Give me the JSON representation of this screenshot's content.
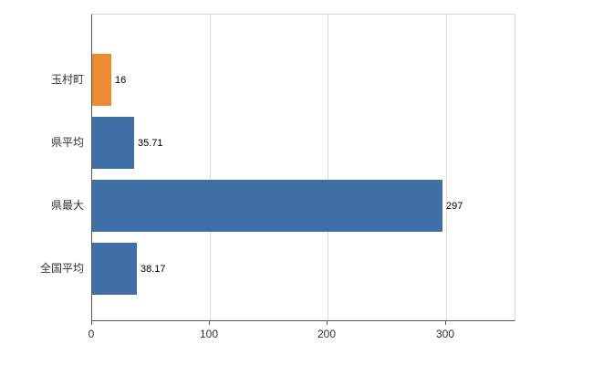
{
  "chart_data": {
    "type": "bar",
    "orientation": "horizontal",
    "title": "",
    "xlabel": "",
    "ylabel": "",
    "categories": [
      "玉村町",
      "県平均",
      "県最大",
      "全国平均"
    ],
    "values": [
      16,
      35.71,
      297,
      38.17
    ],
    "data_labels": [
      "16",
      "35.71",
      "297",
      "38.17"
    ],
    "bar_colors": [
      "#ee8b32",
      "#3e6fa7",
      "#3e6fa7",
      "#3e6fa7"
    ],
    "xlim": [
      0,
      360
    ],
    "x_ticks": [
      0,
      100,
      200,
      300
    ],
    "x_tick_labels": [
      "0",
      "100",
      "200",
      "300"
    ],
    "grid": true,
    "legend": "none"
  },
  "colors": {
    "background": "#ffffff",
    "gridline": "#d9d9d9",
    "axis": "#595959",
    "text": "#333333",
    "bar_blue": "#3e6fa7",
    "bar_orange": "#ee8b32"
  }
}
